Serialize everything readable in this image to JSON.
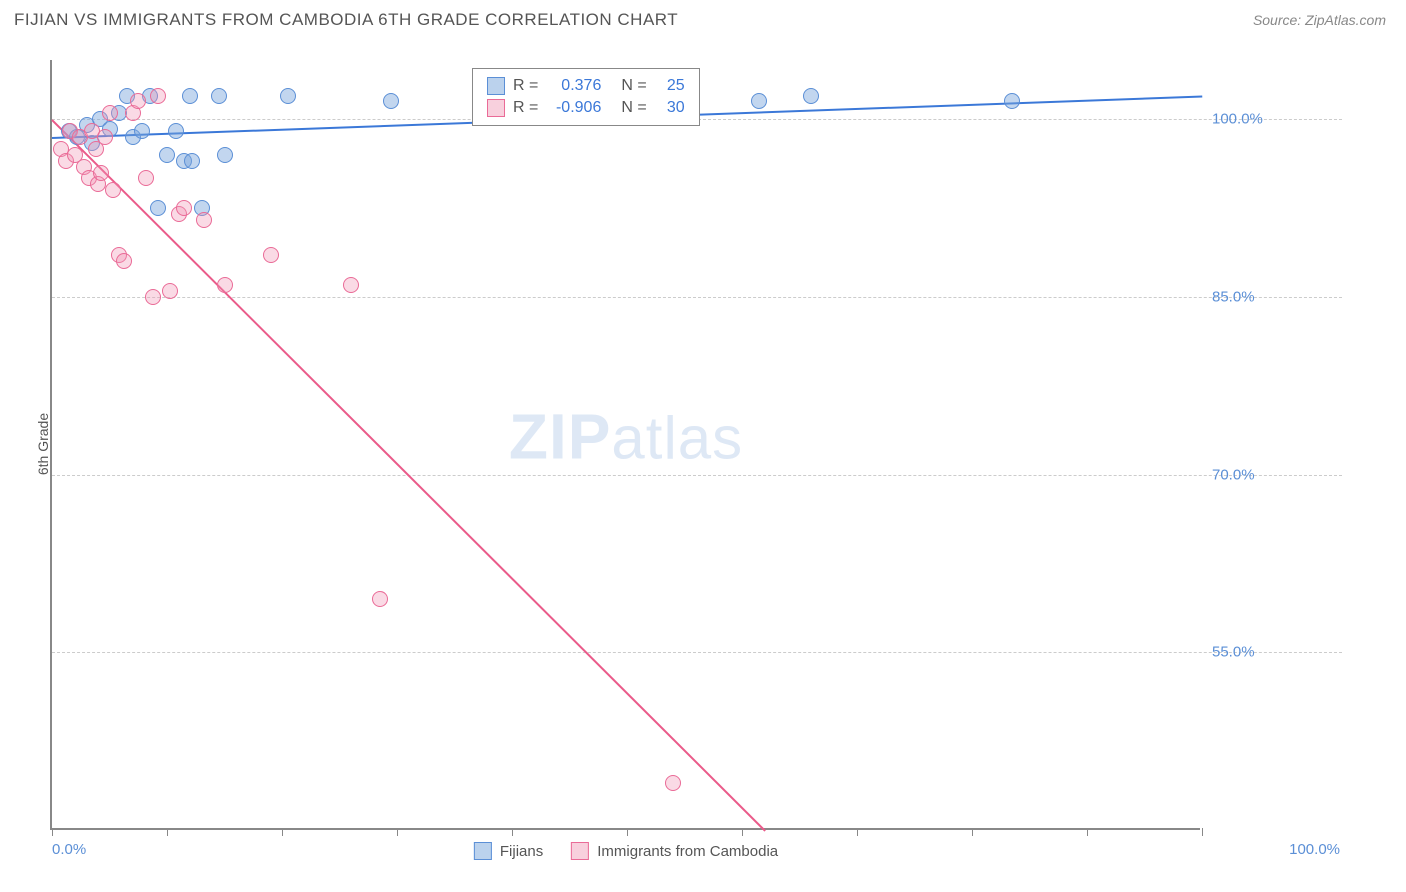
{
  "header": {
    "title": "FIJIAN VS IMMIGRANTS FROM CAMBODIA 6TH GRADE CORRELATION CHART",
    "source": "Source: ZipAtlas.com"
  },
  "watermark": {
    "zip": "ZIP",
    "atlas": "atlas"
  },
  "chart": {
    "type": "scatter",
    "y_axis_label": "6th Grade",
    "xlim": [
      0,
      100
    ],
    "ylim": [
      40,
      105
    ],
    "x_ticks": [
      0,
      10,
      20,
      30,
      40,
      50,
      60,
      70,
      80,
      90,
      100
    ],
    "x_tick_labels": {
      "first": "0.0%",
      "last": "100.0%"
    },
    "y_ticks": [
      55,
      70,
      85,
      100
    ],
    "y_tick_labels": [
      "55.0%",
      "70.0%",
      "85.0%",
      "100.0%"
    ],
    "grid_color": "#cccccc",
    "axis_color": "#888888",
    "background_color": "#ffffff",
    "marker_radius": 8,
    "series": [
      {
        "name": "Fijians",
        "color": "#5b8fd6",
        "fill": "rgba(120,165,220,0.45)",
        "r": 0.376,
        "n": 25,
        "trend": {
          "x1": 0,
          "y1": 98.5,
          "x2": 100,
          "y2": 102,
          "color": "#3b78d8",
          "width": 2
        },
        "points": [
          {
            "x": 1.5,
            "y": 99
          },
          {
            "x": 2.2,
            "y": 98.5
          },
          {
            "x": 3,
            "y": 99.5
          },
          {
            "x": 3.5,
            "y": 98
          },
          {
            "x": 4.2,
            "y": 100
          },
          {
            "x": 5,
            "y": 99.2
          },
          {
            "x": 5.8,
            "y": 100.5
          },
          {
            "x": 6.5,
            "y": 102
          },
          {
            "x": 7,
            "y": 98.5
          },
          {
            "x": 7.8,
            "y": 99
          },
          {
            "x": 8.5,
            "y": 102
          },
          {
            "x": 9.2,
            "y": 92.5
          },
          {
            "x": 10,
            "y": 97
          },
          {
            "x": 10.8,
            "y": 99
          },
          {
            "x": 11.5,
            "y": 96.5
          },
          {
            "x": 12,
            "y": 102
          },
          {
            "x": 12.2,
            "y": 96.5
          },
          {
            "x": 13,
            "y": 92.5
          },
          {
            "x": 14.5,
            "y": 102
          },
          {
            "x": 15,
            "y": 97
          },
          {
            "x": 20.5,
            "y": 102
          },
          {
            "x": 29.5,
            "y": 101.5
          },
          {
            "x": 61.5,
            "y": 101.5
          },
          {
            "x": 66,
            "y": 102
          },
          {
            "x": 83.5,
            "y": 101.5
          }
        ]
      },
      {
        "name": "Immigrants from Cambodia",
        "color": "#ea6b97",
        "fill": "rgba(240,150,180,0.35)",
        "r": -0.906,
        "n": 30,
        "trend": {
          "x1": 0,
          "y1": 100,
          "x2": 62,
          "y2": 40,
          "color": "#ea5b8a",
          "width": 2
        },
        "points": [
          {
            "x": 0.8,
            "y": 97.5
          },
          {
            "x": 1.2,
            "y": 96.5
          },
          {
            "x": 1.6,
            "y": 99
          },
          {
            "x": 2,
            "y": 97
          },
          {
            "x": 2.4,
            "y": 98.5
          },
          {
            "x": 2.8,
            "y": 96
          },
          {
            "x": 3.2,
            "y": 95
          },
          {
            "x": 3.5,
            "y": 99
          },
          {
            "x": 3.8,
            "y": 97.5
          },
          {
            "x": 4,
            "y": 94.5
          },
          {
            "x": 4.3,
            "y": 95.5
          },
          {
            "x": 4.6,
            "y": 98.5
          },
          {
            "x": 5,
            "y": 100.5
          },
          {
            "x": 5.3,
            "y": 94
          },
          {
            "x": 5.8,
            "y": 88.5
          },
          {
            "x": 6.3,
            "y": 88
          },
          {
            "x": 7,
            "y": 100.5
          },
          {
            "x": 7.5,
            "y": 101.5
          },
          {
            "x": 8.2,
            "y": 95
          },
          {
            "x": 8.8,
            "y": 85
          },
          {
            "x": 9.2,
            "y": 102
          },
          {
            "x": 10.3,
            "y": 85.5
          },
          {
            "x": 11,
            "y": 92
          },
          {
            "x": 11.5,
            "y": 92.5
          },
          {
            "x": 13.2,
            "y": 91.5
          },
          {
            "x": 15,
            "y": 86
          },
          {
            "x": 19,
            "y": 88.5
          },
          {
            "x": 26,
            "y": 86
          },
          {
            "x": 28.5,
            "y": 59.5
          },
          {
            "x": 54,
            "y": 44
          }
        ]
      }
    ],
    "legend_correlation": {
      "rows": [
        {
          "swatch": "blue",
          "r_label": "R =",
          "r_val": "0.376",
          "n_label": "N =",
          "n_val": "25"
        },
        {
          "swatch": "pink",
          "r_label": "R =",
          "r_val": "-0.906",
          "n_label": "N =",
          "n_val": "30"
        }
      ]
    },
    "legend_bottom": {
      "items": [
        {
          "swatch": "blue",
          "label": "Fijians"
        },
        {
          "swatch": "pink",
          "label": "Immigrants from Cambodia"
        }
      ]
    }
  }
}
